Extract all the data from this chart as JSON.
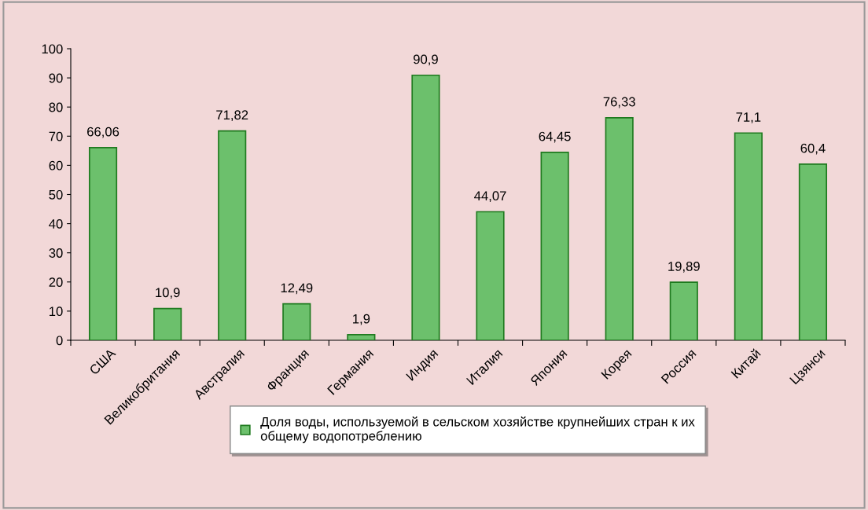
{
  "chart_data": {
    "type": "bar",
    "categories": [
      "США",
      "Великобритания",
      "Австралия",
      "Франция",
      "Германия",
      "Индия",
      "Италия",
      "Япония",
      "Корея",
      "Россия",
      "Китай",
      "Цзянси"
    ],
    "series": [
      {
        "name": "Доля воды, используемой в сельском хозяйстве крупнейших стран к их\nобщему водопотреблению",
        "color": "#6cc06c",
        "values": [
          66.06,
          10.9,
          71.82,
          12.49,
          1.9,
          90.9,
          44.07,
          64.45,
          76.33,
          19.89,
          71.1,
          60.4
        ],
        "value_labels": [
          "66,06",
          "10,9",
          "71,82",
          "12,49",
          "1,9",
          "90,9",
          "44,07",
          "64,45",
          "76,33",
          "19,89",
          "71,1",
          "60,4"
        ]
      }
    ],
    "ylim": [
      0,
      100
    ],
    "yticks": [
      0,
      10,
      20,
      30,
      40,
      50,
      60,
      70,
      80,
      90,
      100
    ],
    "grid": false,
    "legend": "bottom"
  }
}
